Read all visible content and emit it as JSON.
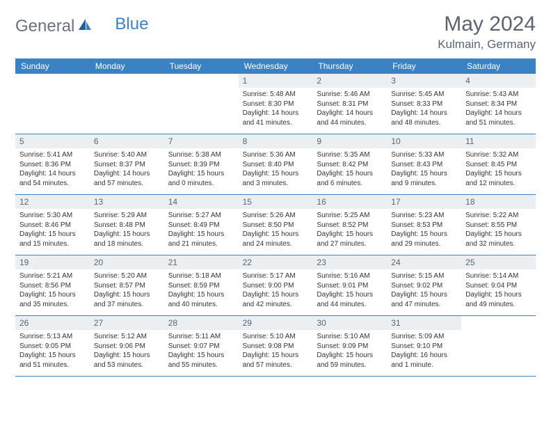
{
  "brand": {
    "word1": "General",
    "word2": "Blue"
  },
  "title": "May 2024",
  "location": "Kulmain, Germany",
  "colors": {
    "header_bg": "#3b82c4",
    "header_text": "#ffffff",
    "daynum_bg": "#eceff1",
    "daynum_text": "#5a6470",
    "border": "#3b82c4",
    "body_text": "#333333",
    "brand_gray": "#6b7280",
    "brand_blue": "#3b82c4"
  },
  "day_names": [
    "Sunday",
    "Monday",
    "Tuesday",
    "Wednesday",
    "Thursday",
    "Friday",
    "Saturday"
  ],
  "weeks": [
    [
      {
        "n": "",
        "sr": "",
        "ss": "",
        "dl": ""
      },
      {
        "n": "",
        "sr": "",
        "ss": "",
        "dl": ""
      },
      {
        "n": "",
        "sr": "",
        "ss": "",
        "dl": ""
      },
      {
        "n": "1",
        "sr": "Sunrise: 5:48 AM",
        "ss": "Sunset: 8:30 PM",
        "dl": "Daylight: 14 hours and 41 minutes."
      },
      {
        "n": "2",
        "sr": "Sunrise: 5:46 AM",
        "ss": "Sunset: 8:31 PM",
        "dl": "Daylight: 14 hours and 44 minutes."
      },
      {
        "n": "3",
        "sr": "Sunrise: 5:45 AM",
        "ss": "Sunset: 8:33 PM",
        "dl": "Daylight: 14 hours and 48 minutes."
      },
      {
        "n": "4",
        "sr": "Sunrise: 5:43 AM",
        "ss": "Sunset: 8:34 PM",
        "dl": "Daylight: 14 hours and 51 minutes."
      }
    ],
    [
      {
        "n": "5",
        "sr": "Sunrise: 5:41 AM",
        "ss": "Sunset: 8:36 PM",
        "dl": "Daylight: 14 hours and 54 minutes."
      },
      {
        "n": "6",
        "sr": "Sunrise: 5:40 AM",
        "ss": "Sunset: 8:37 PM",
        "dl": "Daylight: 14 hours and 57 minutes."
      },
      {
        "n": "7",
        "sr": "Sunrise: 5:38 AM",
        "ss": "Sunset: 8:39 PM",
        "dl": "Daylight: 15 hours and 0 minutes."
      },
      {
        "n": "8",
        "sr": "Sunrise: 5:36 AM",
        "ss": "Sunset: 8:40 PM",
        "dl": "Daylight: 15 hours and 3 minutes."
      },
      {
        "n": "9",
        "sr": "Sunrise: 5:35 AM",
        "ss": "Sunset: 8:42 PM",
        "dl": "Daylight: 15 hours and 6 minutes."
      },
      {
        "n": "10",
        "sr": "Sunrise: 5:33 AM",
        "ss": "Sunset: 8:43 PM",
        "dl": "Daylight: 15 hours and 9 minutes."
      },
      {
        "n": "11",
        "sr": "Sunrise: 5:32 AM",
        "ss": "Sunset: 8:45 PM",
        "dl": "Daylight: 15 hours and 12 minutes."
      }
    ],
    [
      {
        "n": "12",
        "sr": "Sunrise: 5:30 AM",
        "ss": "Sunset: 8:46 PM",
        "dl": "Daylight: 15 hours and 15 minutes."
      },
      {
        "n": "13",
        "sr": "Sunrise: 5:29 AM",
        "ss": "Sunset: 8:48 PM",
        "dl": "Daylight: 15 hours and 18 minutes."
      },
      {
        "n": "14",
        "sr": "Sunrise: 5:27 AM",
        "ss": "Sunset: 8:49 PM",
        "dl": "Daylight: 15 hours and 21 minutes."
      },
      {
        "n": "15",
        "sr": "Sunrise: 5:26 AM",
        "ss": "Sunset: 8:50 PM",
        "dl": "Daylight: 15 hours and 24 minutes."
      },
      {
        "n": "16",
        "sr": "Sunrise: 5:25 AM",
        "ss": "Sunset: 8:52 PM",
        "dl": "Daylight: 15 hours and 27 minutes."
      },
      {
        "n": "17",
        "sr": "Sunrise: 5:23 AM",
        "ss": "Sunset: 8:53 PM",
        "dl": "Daylight: 15 hours and 29 minutes."
      },
      {
        "n": "18",
        "sr": "Sunrise: 5:22 AM",
        "ss": "Sunset: 8:55 PM",
        "dl": "Daylight: 15 hours and 32 minutes."
      }
    ],
    [
      {
        "n": "19",
        "sr": "Sunrise: 5:21 AM",
        "ss": "Sunset: 8:56 PM",
        "dl": "Daylight: 15 hours and 35 minutes."
      },
      {
        "n": "20",
        "sr": "Sunrise: 5:20 AM",
        "ss": "Sunset: 8:57 PM",
        "dl": "Daylight: 15 hours and 37 minutes."
      },
      {
        "n": "21",
        "sr": "Sunrise: 5:18 AM",
        "ss": "Sunset: 8:59 PM",
        "dl": "Daylight: 15 hours and 40 minutes."
      },
      {
        "n": "22",
        "sr": "Sunrise: 5:17 AM",
        "ss": "Sunset: 9:00 PM",
        "dl": "Daylight: 15 hours and 42 minutes."
      },
      {
        "n": "23",
        "sr": "Sunrise: 5:16 AM",
        "ss": "Sunset: 9:01 PM",
        "dl": "Daylight: 15 hours and 44 minutes."
      },
      {
        "n": "24",
        "sr": "Sunrise: 5:15 AM",
        "ss": "Sunset: 9:02 PM",
        "dl": "Daylight: 15 hours and 47 minutes."
      },
      {
        "n": "25",
        "sr": "Sunrise: 5:14 AM",
        "ss": "Sunset: 9:04 PM",
        "dl": "Daylight: 15 hours and 49 minutes."
      }
    ],
    [
      {
        "n": "26",
        "sr": "Sunrise: 5:13 AM",
        "ss": "Sunset: 9:05 PM",
        "dl": "Daylight: 15 hours and 51 minutes."
      },
      {
        "n": "27",
        "sr": "Sunrise: 5:12 AM",
        "ss": "Sunset: 9:06 PM",
        "dl": "Daylight: 15 hours and 53 minutes."
      },
      {
        "n": "28",
        "sr": "Sunrise: 5:11 AM",
        "ss": "Sunset: 9:07 PM",
        "dl": "Daylight: 15 hours and 55 minutes."
      },
      {
        "n": "29",
        "sr": "Sunrise: 5:10 AM",
        "ss": "Sunset: 9:08 PM",
        "dl": "Daylight: 15 hours and 57 minutes."
      },
      {
        "n": "30",
        "sr": "Sunrise: 5:10 AM",
        "ss": "Sunset: 9:09 PM",
        "dl": "Daylight: 15 hours and 59 minutes."
      },
      {
        "n": "31",
        "sr": "Sunrise: 5:09 AM",
        "ss": "Sunset: 9:10 PM",
        "dl": "Daylight: 16 hours and 1 minute."
      },
      {
        "n": "",
        "sr": "",
        "ss": "",
        "dl": ""
      }
    ]
  ]
}
